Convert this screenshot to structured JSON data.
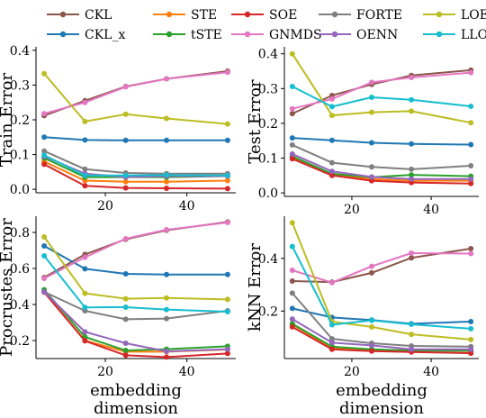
{
  "chart_data": {
    "type": "line",
    "x": [
      5,
      15,
      25,
      35,
      50
    ],
    "legend": {
      "placement": "top",
      "entries": [
        {
          "name": "CKL",
          "color": "#8c564b"
        },
        {
          "name": "CKL_x",
          "color": "#1f77b4"
        },
        {
          "name": "STE",
          "color": "#ff7f0e"
        },
        {
          "name": "tSTE",
          "color": "#2ca02c"
        },
        {
          "name": "SOE",
          "color": "#d62728"
        },
        {
          "name": "GNMDS",
          "color": "#e377c2"
        },
        {
          "name": "FORTE",
          "color": "#7f7f7f"
        },
        {
          "name": "OENN",
          "color": "#9467bd"
        },
        {
          "name": "LOE",
          "color": "#bcbd22"
        },
        {
          "name": "LLOE",
          "color": "#17becf"
        }
      ]
    },
    "panels": [
      {
        "ylabel": "Train Error",
        "xlabel": "",
        "ylim": [
          -0.01,
          0.41
        ],
        "yticks": [
          "0.0",
          "0.1",
          "0.2",
          "0.3",
          "0.4"
        ],
        "ytick_values": [
          0.0,
          0.1,
          0.2,
          0.3,
          0.4
        ],
        "xticks": [
          "20",
          "40"
        ],
        "xtick_values": [
          20,
          40
        ],
        "xlim": [
          3,
          52
        ],
        "series": [
          {
            "name": "CKL",
            "values": [
              0.212,
              0.255,
              0.296,
              0.318,
              0.34
            ]
          },
          {
            "name": "CKL_x",
            "values": [
              0.15,
              0.142,
              0.141,
              0.141,
              0.141
            ]
          },
          {
            "name": "STE",
            "values": [
              0.08,
              0.025,
              0.022,
              0.022,
              0.025
            ]
          },
          {
            "name": "tSTE",
            "values": [
              0.09,
              0.035,
              0.035,
              0.035,
              0.038
            ]
          },
          {
            "name": "SOE",
            "values": [
              0.072,
              0.01,
              0.004,
              0.003,
              0.002
            ]
          },
          {
            "name": "GNMDS",
            "values": [
              0.218,
              0.25,
              0.295,
              0.318,
              0.337
            ]
          },
          {
            "name": "FORTE",
            "values": [
              0.11,
              0.058,
              0.047,
              0.045,
              0.045
            ]
          },
          {
            "name": "OENN",
            "values": [
              0.095,
              0.045,
              0.035,
              0.038,
              0.038
            ]
          },
          {
            "name": "LOE",
            "values": [
              0.333,
              0.195,
              0.216,
              0.204,
              0.188
            ]
          },
          {
            "name": "LLOE",
            "values": [
              0.098,
              0.04,
              0.04,
              0.041,
              0.04
            ]
          }
        ]
      },
      {
        "ylabel": "Test Error",
        "xlabel": "",
        "ylim": [
          -0.01,
          0.42
        ],
        "yticks": [
          "0.0",
          "0.1",
          "0.2",
          "0.3",
          "0.4"
        ],
        "ytick_values": [
          0.0,
          0.1,
          0.2,
          0.3,
          0.4
        ],
        "xticks": [
          "20",
          "40"
        ],
        "xtick_values": [
          20,
          40
        ],
        "xlim": [
          3,
          52
        ],
        "series": [
          {
            "name": "CKL",
            "values": [
              0.228,
              0.28,
              0.312,
              0.338,
              0.353
            ]
          },
          {
            "name": "CKL_x",
            "values": [
              0.158,
              0.151,
              0.144,
              0.141,
              0.139
            ]
          },
          {
            "name": "STE",
            "values": [
              0.1,
              0.052,
              0.04,
              0.035,
              0.035
            ]
          },
          {
            "name": "tSTE",
            "values": [
              0.105,
              0.055,
              0.045,
              0.052,
              0.048
            ]
          },
          {
            "name": "SOE",
            "values": [
              0.098,
              0.05,
              0.035,
              0.03,
              0.027
            ]
          },
          {
            "name": "GNMDS",
            "values": [
              0.242,
              0.27,
              0.318,
              0.332,
              0.346
            ]
          },
          {
            "name": "FORTE",
            "values": [
              0.138,
              0.087,
              0.075,
              0.068,
              0.078
            ]
          },
          {
            "name": "OENN",
            "values": [
              0.112,
              0.062,
              0.046,
              0.04,
              0.04
            ]
          },
          {
            "name": "LOE",
            "values": [
              0.4,
              0.223,
              0.232,
              0.235,
              0.202
            ]
          },
          {
            "name": "LLOE",
            "values": [
              0.306,
              0.248,
              0.275,
              0.268,
              0.249
            ]
          }
        ]
      },
      {
        "ylabel": "Procrustes Error",
        "xlabel": "embedding dimension",
        "ylim": [
          0.1,
          0.89
        ],
        "yticks": [
          "0.2",
          "0.4",
          "0.6",
          "0.8"
        ],
        "ytick_values": [
          0.2,
          0.4,
          0.6,
          0.8
        ],
        "xticks": [
          "20",
          "40"
        ],
        "xtick_values": [
          20,
          40
        ],
        "xlim": [
          3,
          52
        ],
        "series": [
          {
            "name": "CKL",
            "values": [
              0.55,
              0.678,
              0.762,
              0.812,
              0.858
            ]
          },
          {
            "name": "CKL_x",
            "values": [
              0.725,
              0.598,
              0.57,
              0.566,
              0.566
            ]
          },
          {
            "name": "STE",
            "values": [
              0.468,
              0.2,
              0.138,
              0.138,
              0.15
            ]
          },
          {
            "name": "tSTE",
            "values": [
              0.482,
              0.22,
              0.145,
              0.152,
              0.168
            ]
          },
          {
            "name": "SOE",
            "values": [
              0.468,
              0.198,
              0.118,
              0.108,
              0.128
            ]
          },
          {
            "name": "GNMDS",
            "values": [
              0.545,
              0.662,
              0.765,
              0.815,
              0.855
            ]
          },
          {
            "name": "FORTE",
            "values": [
              0.47,
              0.365,
              0.318,
              0.322,
              0.365
            ]
          },
          {
            "name": "OENN",
            "values": [
              0.47,
              0.248,
              0.185,
              0.14,
              0.152
            ]
          },
          {
            "name": "LOE",
            "values": [
              0.775,
              0.462,
              0.432,
              0.436,
              0.428
            ]
          },
          {
            "name": "LLOE",
            "values": [
              0.67,
              0.384,
              0.385,
              0.372,
              0.36
            ]
          }
        ]
      },
      {
        "ylabel": "kNN Error",
        "xlabel": "embedding dimension",
        "ylim": [
          0.02,
          0.56
        ],
        "yticks": [
          "0.2",
          "0.4"
        ],
        "ytick_values": [
          0.2,
          0.4
        ],
        "xticks": [
          "20",
          "40"
        ],
        "xtick_values": [
          20,
          40
        ],
        "xlim": [
          3,
          52
        ],
        "series": [
          {
            "name": "CKL",
            "values": [
              0.314,
              0.31,
              0.345,
              0.402,
              0.437
            ]
          },
          {
            "name": "CKL_x",
            "values": [
              0.21,
              0.176,
              0.166,
              0.152,
              0.16
            ]
          },
          {
            "name": "STE",
            "values": [
              0.15,
              0.06,
              0.052,
              0.052,
              0.048
            ]
          },
          {
            "name": "tSTE",
            "values": [
              0.152,
              0.065,
              0.055,
              0.05,
              0.05
            ]
          },
          {
            "name": "SOE",
            "values": [
              0.14,
              0.055,
              0.048,
              0.045,
              0.04
            ]
          },
          {
            "name": "GNMDS",
            "values": [
              0.355,
              0.308,
              0.37,
              0.42,
              0.418
            ]
          },
          {
            "name": "FORTE",
            "values": [
              0.268,
              0.095,
              0.078,
              0.068,
              0.065
            ]
          },
          {
            "name": "OENN",
            "values": [
              0.17,
              0.08,
              0.07,
              0.055,
              0.055
            ]
          },
          {
            "name": "LOE",
            "values": [
              0.535,
              0.16,
              0.14,
              0.112,
              0.092
            ]
          },
          {
            "name": "LLOE",
            "values": [
              0.445,
              0.148,
              0.165,
              0.15,
              0.133
            ]
          }
        ]
      }
    ]
  }
}
